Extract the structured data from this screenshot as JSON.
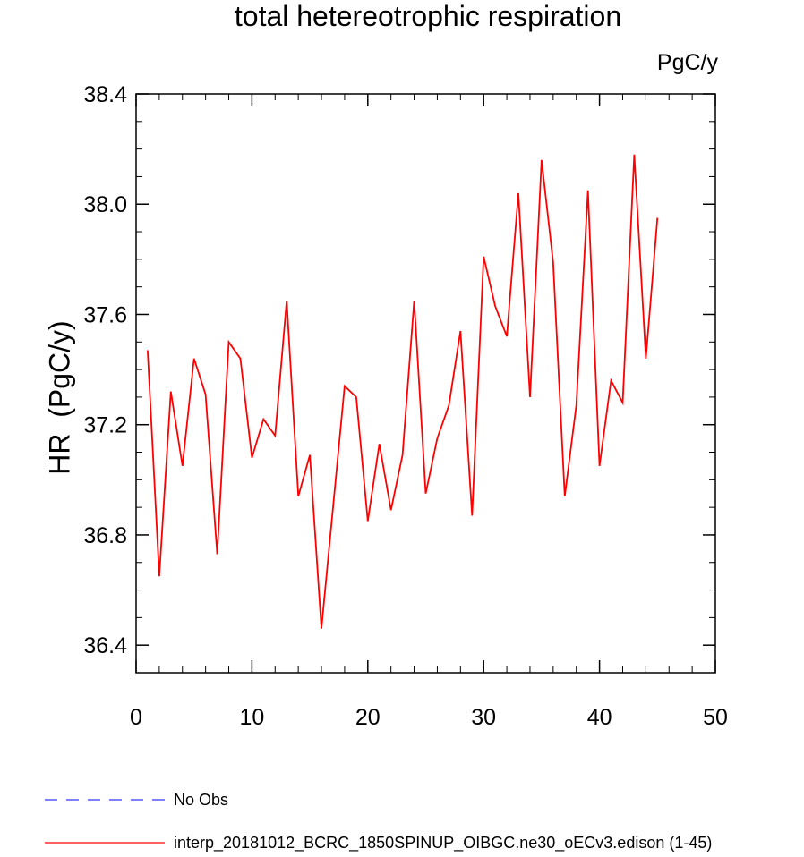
{
  "chart_data": {
    "type": "line",
    "title": "total hetereotrophic respiration",
    "units": "PgC/y",
    "xlabel": "",
    "ylabel": "HR  (PgC/y)",
    "xlim": [
      0,
      50
    ],
    "ylim": [
      36.3,
      38.4
    ],
    "xticks": [
      0,
      10,
      20,
      30,
      40,
      50
    ],
    "xtick_labels": [
      "0",
      "10",
      "20",
      "30",
      "40",
      "50"
    ],
    "yticks": [
      36.4,
      36.8,
      37.2,
      37.6,
      38.0,
      38.4
    ],
    "ytick_labels": [
      "36.4",
      "36.8",
      "37.2",
      "37.6",
      "38.0",
      "38.4"
    ],
    "grid": false,
    "legend_position": "bottom",
    "legend": [
      {
        "label": "No Obs",
        "color": "#3333ff",
        "style": "dashed"
      },
      {
        "label": "interp_20181012_BCRC_1850SPINUP_OIBGC.ne30_oECv3.edison (1-45)",
        "color": "#ff0000",
        "style": "solid"
      }
    ],
    "series": [
      {
        "name": "interp_20181012_BCRC_1850SPINUP_OIBGC.ne30_oECv3.edison (1-45)",
        "color": "#ff0000",
        "x": [
          1,
          2,
          3,
          4,
          5,
          6,
          7,
          8,
          9,
          10,
          11,
          12,
          13,
          14,
          15,
          16,
          17,
          18,
          19,
          20,
          21,
          22,
          23,
          24,
          25,
          26,
          27,
          28,
          29,
          30,
          31,
          32,
          33,
          34,
          35,
          36,
          37,
          38,
          39,
          40,
          41,
          42,
          43,
          44,
          45
        ],
        "values": [
          37.47,
          36.65,
          37.32,
          37.05,
          37.44,
          37.31,
          36.73,
          37.5,
          37.44,
          37.08,
          37.22,
          37.16,
          37.65,
          36.94,
          37.09,
          36.46,
          36.9,
          37.34,
          37.3,
          36.85,
          37.13,
          36.89,
          37.09,
          37.65,
          36.95,
          37.15,
          37.27,
          37.54,
          36.87,
          37.81,
          37.63,
          37.52,
          38.04,
          37.3,
          38.16,
          37.79,
          36.94,
          37.27,
          38.05,
          37.05,
          37.36,
          37.28,
          38.18,
          37.44,
          37.95
        ]
      }
    ]
  }
}
